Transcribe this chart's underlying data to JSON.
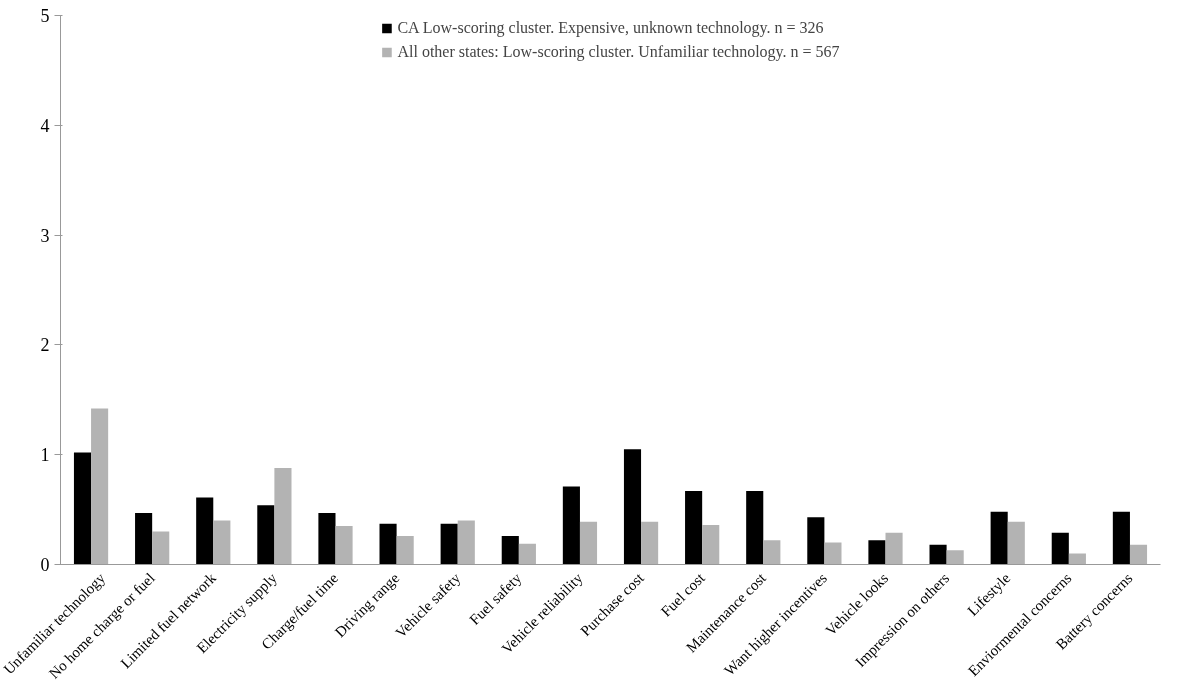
{
  "chart_data": {
    "type": "bar",
    "categories": [
      "Unfamiliar technology",
      "No home charge or fuel",
      "Limited fuel network",
      "Electricity supply",
      "Charge/fuel time",
      "Driving range",
      "Vehicle safety",
      "Fuel safety",
      "Vehicle reliability",
      "Purchase cost",
      "Fuel cost",
      "Maintenance cost",
      "Want higher incentives",
      "Vehicle looks",
      "Impression on others",
      "Lifestyle",
      "Enviormental concerns",
      "Battery concerns"
    ],
    "series": [
      {
        "name": "CA Low-scoring cluster. Expensive, unknown technology. n = 326",
        "color": "#000000",
        "values": [
          1.02,
          0.47,
          0.61,
          0.54,
          0.47,
          0.37,
          0.37,
          0.26,
          0.71,
          1.05,
          0.67,
          0.67,
          0.43,
          0.22,
          0.18,
          0.48,
          0.29,
          0.48
        ]
      },
      {
        "name": "All other states: Low-scoring cluster. Unfamiliar technology. n = 567",
        "color": "#b3b3b3",
        "values": [
          1.42,
          0.3,
          0.4,
          0.88,
          0.35,
          0.26,
          0.4,
          0.19,
          0.39,
          0.39,
          0.36,
          0.22,
          0.2,
          0.29,
          0.13,
          0.39,
          0.1,
          0.18
        ]
      }
    ],
    "ylim": [
      0,
      5
    ],
    "yticks": [
      0,
      1,
      2,
      3,
      4,
      5
    ],
    "grid": false,
    "legend": "top"
  }
}
